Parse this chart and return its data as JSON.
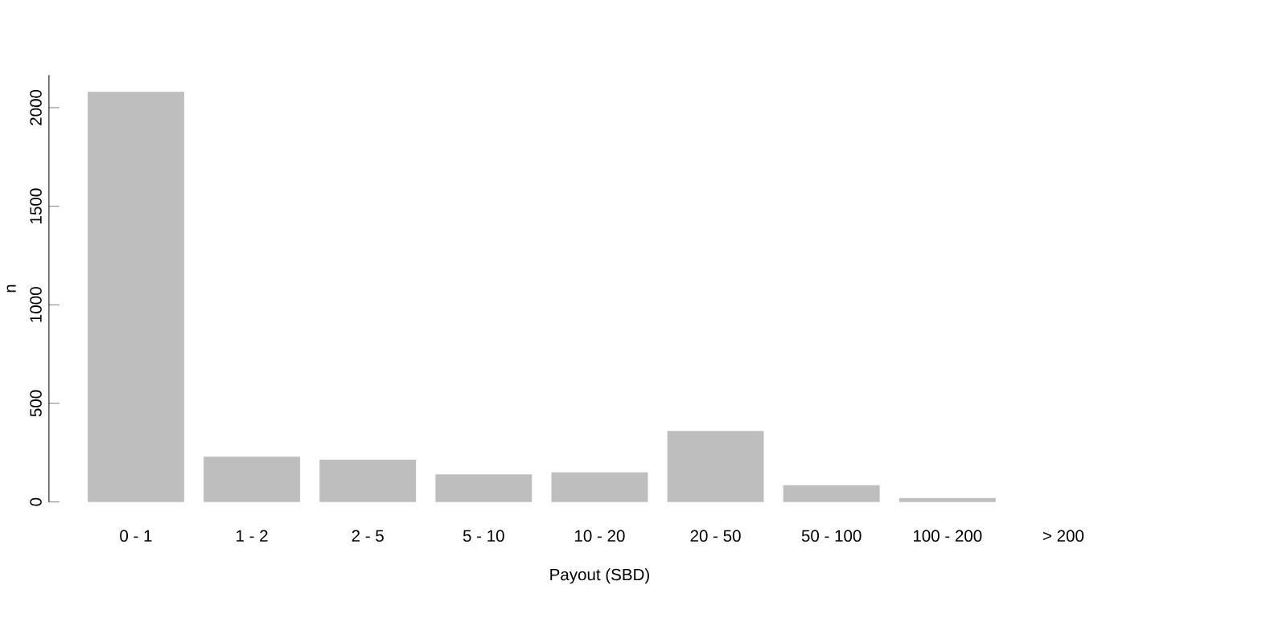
{
  "chart_data": {
    "type": "bar",
    "xlabel": "Payout (SBD)",
    "ylabel": "n",
    "categories": [
      "0 - 1",
      "1 - 2",
      "2 - 5",
      "5 - 10",
      "10 - 20",
      "20 - 50",
      "50 - 100",
      "100 - 200",
      "> 200"
    ],
    "values": [
      2080,
      230,
      215,
      140,
      150,
      360,
      85,
      20,
      0
    ],
    "color": "#bebebe",
    "ylim": [
      0,
      2165
    ],
    "yticks": [
      0,
      500,
      1000,
      1500,
      2000
    ]
  }
}
